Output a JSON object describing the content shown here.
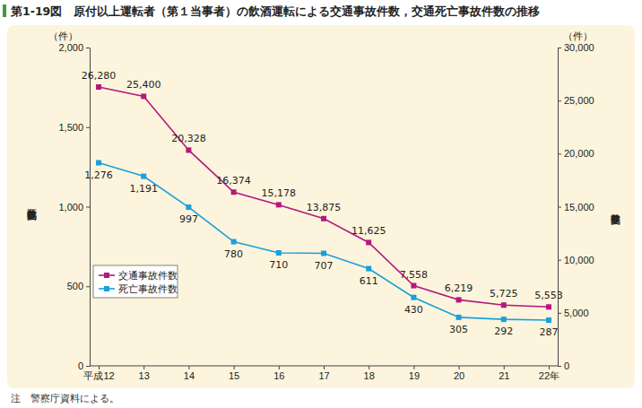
{
  "chart_data": {
    "type": "line",
    "title": "第1-19図　原付以上運転者（第１当事者）の飲酒運転による交通事故件数，交通死亡事故件数の推移",
    "y_label": "交通死亡事故件数",
    "y2_label": "交通事故件数",
    "y_unit": "（件）",
    "y2_unit": "（件）",
    "annotations": [
      "注　警察庁資料による。"
    ],
    "categories": [
      "平成12",
      "13",
      "14",
      "15",
      "16",
      "17",
      "18",
      "19",
      "20",
      "21",
      "22年"
    ],
    "ylim": [
      0,
      2000
    ],
    "yticks": [
      0,
      500,
      {
        "value": 1000,
        "label": "1,000"
      },
      {
        "value": 1500,
        "label": "1,500"
      },
      {
        "value": 2000,
        "label": "2,000"
      }
    ],
    "y2lim": [
      0,
      30000
    ],
    "y2ticks": [
      0,
      {
        "value": 5000,
        "label": "5,000"
      },
      {
        "value": 10000,
        "label": "10,000"
      },
      {
        "value": 15000,
        "label": "15,000"
      },
      {
        "value": 20000,
        "label": "20,000"
      },
      {
        "value": 25000,
        "label": "25,000"
      },
      {
        "value": 30000,
        "label": "30,000"
      }
    ],
    "grid": false,
    "legend": "center left",
    "data_labels": true,
    "series": [
      {
        "name": "交通事故件数",
        "color": "#b4187e",
        "axis": "y2",
        "marker": "square",
        "line_style": "solid",
        "values": [
          26280,
          25400,
          20328,
          16374,
          15178,
          13875,
          11625,
          7558,
          6219,
          5725,
          5553
        ],
        "value_labels": [
          "26,280",
          "25,400",
          "20,328",
          "16,374",
          "15,178",
          "13,875",
          "11,625",
          "7,558",
          "6,219",
          "5,725",
          "5,553"
        ]
      },
      {
        "name": "死亡事故件数",
        "color": "#1aa0dc",
        "axis": "y",
        "marker": "square",
        "line_style": "solid",
        "values": [
          1276,
          1191,
          997,
          780,
          710,
          707,
          611,
          430,
          305,
          292,
          287
        ],
        "value_labels": [
          "1,276",
          "1,191",
          "997",
          "780",
          "710",
          "707",
          "611",
          "430",
          "305",
          "292",
          "287"
        ]
      }
    ]
  }
}
